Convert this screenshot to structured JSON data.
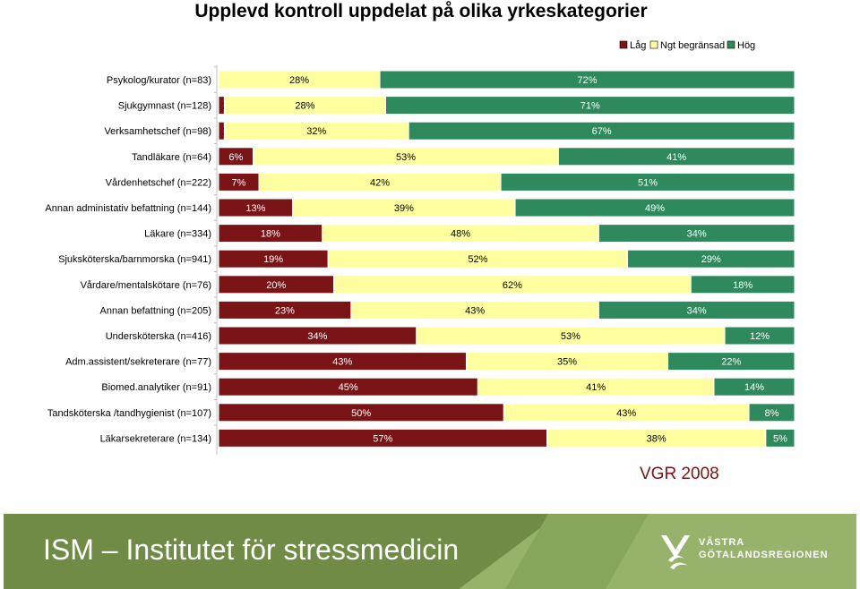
{
  "footer": {
    "institute": "ISM – Institutet för stressmedicin",
    "logo_line1": "VÄSTRA",
    "logo_line2": "GÖTALANDSREGIONEN"
  },
  "source_note": "VGR 2008",
  "colors": {
    "low": "#7b1416",
    "some": "#ffffa0",
    "high": "#2e8a5c"
  },
  "chart_data": {
    "type": "bar",
    "orientation": "horizontal",
    "stacked": true,
    "title": "Upplevd kontroll uppdelat på olika yrkeskategorier",
    "legend_position": "top-right",
    "xlim": [
      0,
      100
    ],
    "categories": [
      "Psykolog/kurator (n=83)",
      "Sjukgymnast (n=128)",
      "Verksamhetschef (n=98)",
      "Tandläkare (n=64)",
      "Vårdenhetschef (n=222)",
      "Annan administativ befattning (n=144)",
      "Läkare (n=334)",
      "Sjuksköterska/barnmorska (n=941)",
      "Vårdare/mentalskötare (n=76)",
      "Annan befattning (n=205)",
      "Undersköterska (n=416)",
      "Adm.assistent/sekreterare (n=77)",
      "Biomed.analytiker (n=91)",
      "Tandsköterska /tandhygienist (n=107)",
      "Läkarsekreterare (n=134)"
    ],
    "series": [
      {
        "name": "Låg",
        "values": [
          0,
          1,
          1,
          6,
          7,
          13,
          18,
          19,
          20,
          23,
          34,
          43,
          45,
          50,
          57
        ]
      },
      {
        "name": "Ngt begränsad",
        "values": [
          28,
          28,
          32,
          53,
          42,
          39,
          48,
          52,
          62,
          43,
          53,
          35,
          41,
          43,
          38
        ]
      },
      {
        "name": "Hög",
        "values": [
          72,
          71,
          67,
          41,
          51,
          49,
          34,
          29,
          18,
          34,
          12,
          22,
          14,
          8,
          5
        ]
      }
    ]
  }
}
